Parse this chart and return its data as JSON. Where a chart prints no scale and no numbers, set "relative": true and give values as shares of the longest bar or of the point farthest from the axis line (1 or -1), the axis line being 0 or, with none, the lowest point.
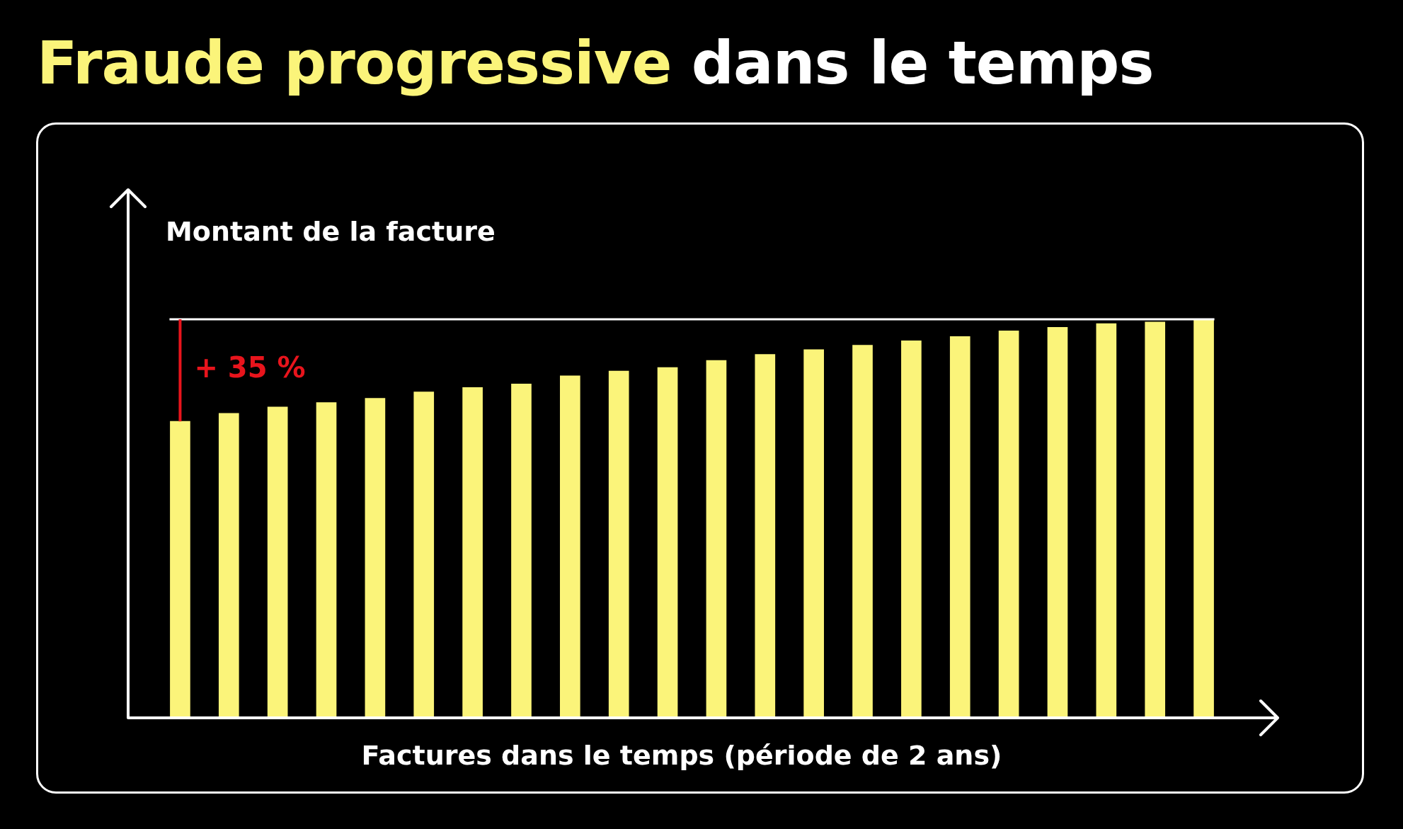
{
  "chart_data": {
    "type": "bar",
    "title": "Fraude progressive dans le temps",
    "xlabel": "Factures dans le temps (période de 2 ans)",
    "ylabel": "Montant de la facture",
    "relative": true,
    "categories": [
      null,
      null,
      null,
      null,
      null,
      null,
      null,
      null,
      null,
      null,
      null,
      null,
      null,
      null,
      null,
      null,
      null,
      null,
      null,
      null,
      null,
      null
    ],
    "values": [
      0.744,
      0.764,
      0.78,
      0.791,
      0.802,
      0.818,
      0.829,
      0.838,
      0.858,
      0.87,
      0.879,
      0.897,
      0.912,
      0.924,
      0.935,
      0.946,
      0.957,
      0.971,
      0.98,
      0.989,
      0.993,
      1
    ],
    "color": "#fbf47a",
    "ref_lines": [
      {
        "axis": "y",
        "value": 1,
        "color": "#ffffff"
      }
    ],
    "annotations": [
      "+ 35 %"
    ]
  }
}
